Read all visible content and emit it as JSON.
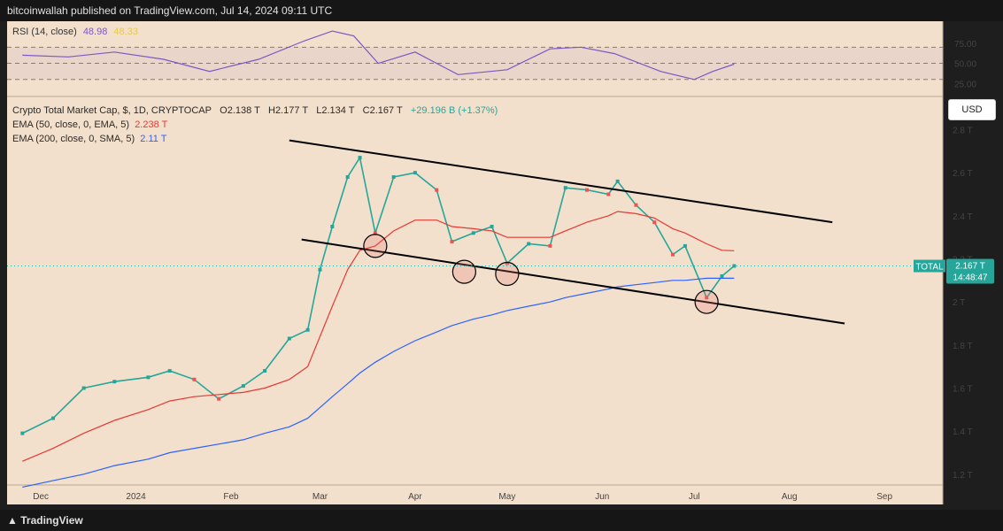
{
  "header": {
    "publisher": "bitcoinwallah published on TradingView.com, Jul 14, 2024 09:11 UTC"
  },
  "footer": {
    "brand": "TradingView"
  },
  "rsi": {
    "label": "RSI (14, close)",
    "value": "48.98",
    "ma_value": "48.33",
    "ticks": [
      "75.00",
      "50.00",
      "25.00"
    ]
  },
  "main": {
    "title": "Crypto Total Market Cap, $, 1D, CRYPTOCAP",
    "open": "O2.138 T",
    "high": "H2.177 T",
    "low": "L2.134 T",
    "close": "C2.167 T",
    "change": "+29.196 B (+1.37%)",
    "ema50_label": "EMA (50, close, 0, EMA, 5)",
    "ema50_value": "2.238 T",
    "ema200_label": "EMA (200, close, 0, SMA, 5)",
    "ema200_value": "2.11 T",
    "currency_button": "USD",
    "price_tag_name": "TOTAL",
    "price_tag_value": "2.167 T",
    "price_tag_timer": "14:48:47"
  },
  "chart_data": {
    "type": "line",
    "title": "Crypto Total Market Cap, $, 1D, CRYPTOCAP",
    "x_ticks": [
      "Dec",
      "2024",
      "Feb",
      "Mar",
      "Apr",
      "May",
      "Jun",
      "Jul",
      "Aug",
      "Sep"
    ],
    "y_ticks": [
      "2.8 T",
      "2.6 T",
      "2.4 T",
      "2.2 T",
      "2 T",
      "1.8 T",
      "1.6 T",
      "1.4 T",
      "1.2 T"
    ],
    "ylim": [
      1.15,
      2.95
    ],
    "x": [
      "2023-11-25",
      "2023-12-05",
      "2023-12-15",
      "2023-12-25",
      "2024-01-05",
      "2024-01-12",
      "2024-01-20",
      "2024-01-28",
      "2024-02-05",
      "2024-02-12",
      "2024-02-20",
      "2024-02-26",
      "2024-03-01",
      "2024-03-05",
      "2024-03-10",
      "2024-03-14",
      "2024-03-19",
      "2024-03-25",
      "2024-04-01",
      "2024-04-08",
      "2024-04-13",
      "2024-04-20",
      "2024-04-26",
      "2024-05-01",
      "2024-05-08",
      "2024-05-15",
      "2024-05-20",
      "2024-05-27",
      "2024-06-03",
      "2024-06-06",
      "2024-06-12",
      "2024-06-18",
      "2024-06-24",
      "2024-06-28",
      "2024-07-05",
      "2024-07-10",
      "2024-07-14"
    ],
    "series": [
      {
        "name": "TOTAL",
        "values": [
          1.39,
          1.46,
          1.6,
          1.63,
          1.65,
          1.68,
          1.64,
          1.55,
          1.61,
          1.68,
          1.83,
          1.87,
          2.15,
          2.35,
          2.58,
          2.67,
          2.32,
          2.58,
          2.6,
          2.52,
          2.28,
          2.32,
          2.35,
          2.18,
          2.27,
          2.26,
          2.53,
          2.52,
          2.5,
          2.56,
          2.45,
          2.37,
          2.22,
          2.26,
          2.02,
          2.12,
          2.167
        ]
      },
      {
        "name": "EMA (50, close, 0, EMA, 5)",
        "values": [
          1.26,
          1.32,
          1.39,
          1.45,
          1.5,
          1.54,
          1.56,
          1.57,
          1.58,
          1.6,
          1.64,
          1.7,
          1.84,
          1.98,
          2.15,
          2.24,
          2.26,
          2.33,
          2.38,
          2.38,
          2.35,
          2.34,
          2.33,
          2.3,
          2.3,
          2.3,
          2.33,
          2.37,
          2.4,
          2.42,
          2.41,
          2.39,
          2.34,
          2.32,
          2.27,
          2.24,
          2.238
        ]
      },
      {
        "name": "EMA (200, close, 0, SMA, 5)",
        "values": [
          1.14,
          1.17,
          1.2,
          1.24,
          1.27,
          1.3,
          1.32,
          1.34,
          1.36,
          1.39,
          1.42,
          1.46,
          1.51,
          1.56,
          1.62,
          1.67,
          1.72,
          1.77,
          1.82,
          1.86,
          1.89,
          1.92,
          1.94,
          1.96,
          1.98,
          2.0,
          2.02,
          2.04,
          2.06,
          2.07,
          2.08,
          2.09,
          2.1,
          2.1,
          2.11,
          2.11,
          2.11
        ]
      }
    ],
    "trendlines": [
      {
        "from": [
          "2024-02-20",
          2.75
        ],
        "to": [
          "2024-08-15",
          2.37
        ]
      },
      {
        "from": [
          "2024-02-24",
          2.29
        ],
        "to": [
          "2024-08-19",
          1.9
        ]
      }
    ],
    "highlighted": [
      {
        "x": "2024-03-19",
        "y": 2.26
      },
      {
        "x": "2024-04-17",
        "y": 2.14
      },
      {
        "x": "2024-05-01",
        "y": 2.13
      },
      {
        "x": "2024-07-05",
        "y": 2.0
      }
    ],
    "rsi": {
      "x": [
        "2023-11-25",
        "2023-12-10",
        "2023-12-25",
        "2024-01-10",
        "2024-01-25",
        "2024-02-10",
        "2024-02-25",
        "2024-03-05",
        "2024-03-12",
        "2024-03-20",
        "2024-04-01",
        "2024-04-15",
        "2024-05-01",
        "2024-05-15",
        "2024-05-25",
        "2024-06-05",
        "2024-06-20",
        "2024-07-01",
        "2024-07-07",
        "2024-07-14"
      ],
      "values": [
        60,
        58,
        64,
        55,
        40,
        55,
        78,
        90,
        84,
        50,
        64,
        36,
        42,
        68,
        70,
        62,
        40,
        30,
        40,
        48.98
      ]
    },
    "legend": "top-left",
    "grid": false
  }
}
